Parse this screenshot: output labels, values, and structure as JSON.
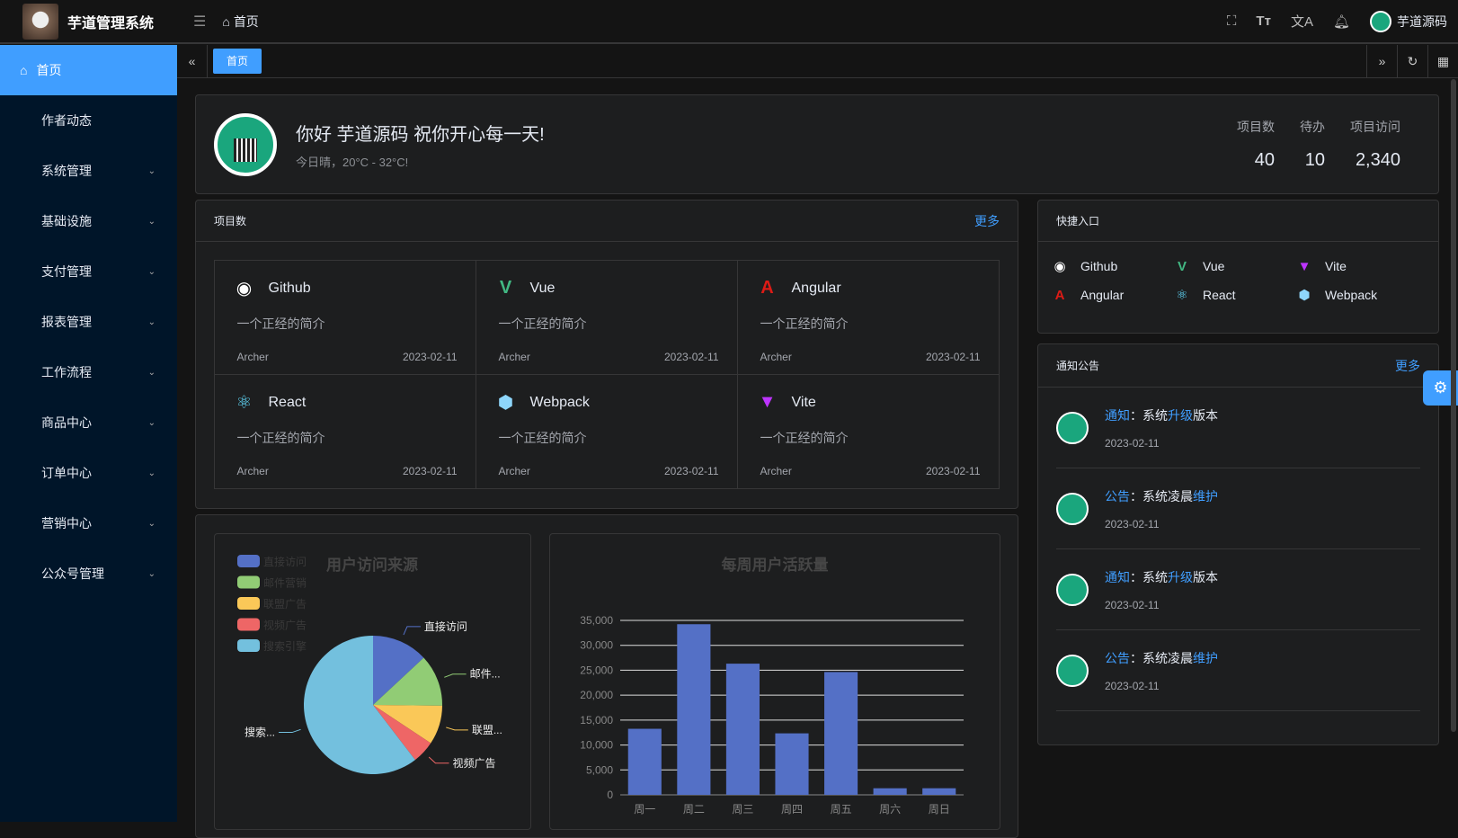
{
  "header": {
    "app_name": "芋道管理系统",
    "breadcrumb": "首页",
    "user": "芋道源码",
    "icons": [
      "fullscreen-icon",
      "font-size-icon",
      "translate-icon",
      "bell-icon"
    ]
  },
  "sidebar": {
    "items": [
      {
        "label": "首页",
        "active": true,
        "icon": "home-icon"
      },
      {
        "label": "作者动态"
      },
      {
        "label": "系统管理",
        "expandable": true
      },
      {
        "label": "基础设施",
        "expandable": true
      },
      {
        "label": "支付管理",
        "expandable": true
      },
      {
        "label": "报表管理",
        "expandable": true
      },
      {
        "label": "工作流程",
        "expandable": true
      },
      {
        "label": "商品中心",
        "expandable": true
      },
      {
        "label": "订单中心",
        "expandable": true
      },
      {
        "label": "营销中心",
        "expandable": true
      },
      {
        "label": "公众号管理",
        "expandable": true
      }
    ]
  },
  "tabs": {
    "items": [
      "首页"
    ]
  },
  "welcome": {
    "greeting": "你好 芋道源码 祝你开心每一天!",
    "weather": "今日晴，20°C - 32°C!",
    "stats": [
      {
        "label": "项目数",
        "value": "40"
      },
      {
        "label": "待办",
        "value": "10"
      },
      {
        "label": "项目访问",
        "value": "2,340"
      }
    ]
  },
  "projects": {
    "title": "项目数",
    "more": "更多",
    "items": [
      {
        "name": "Github",
        "icon": "github-icon",
        "color": "#ffffff",
        "desc": "一个正经的简介",
        "author": "Archer",
        "date": "2023-02-11"
      },
      {
        "name": "Vue",
        "icon": "vue-icon",
        "color": "#42b883",
        "desc": "一个正经的简介",
        "author": "Archer",
        "date": "2023-02-11"
      },
      {
        "name": "Angular",
        "icon": "angular-icon",
        "color": "#dd1b16",
        "desc": "一个正经的简介",
        "author": "Archer",
        "date": "2023-02-11"
      },
      {
        "name": "React",
        "icon": "react-icon",
        "color": "#61dafb",
        "desc": "一个正经的简介",
        "author": "Archer",
        "date": "2023-02-11"
      },
      {
        "name": "Webpack",
        "icon": "webpack-icon",
        "color": "#8ed6fb",
        "desc": "一个正经的简介",
        "author": "Archer",
        "date": "2023-02-11"
      },
      {
        "name": "Vite",
        "icon": "vite-icon",
        "color": "#bd34fe",
        "desc": "一个正经的简介",
        "author": "Archer",
        "date": "2023-02-11"
      }
    ]
  },
  "quick": {
    "title": "快捷入口",
    "items": [
      {
        "name": "Github",
        "icon": "github-icon",
        "color": "#ffffff"
      },
      {
        "name": "Vue",
        "icon": "vue-icon",
        "color": "#42b883"
      },
      {
        "name": "Vite",
        "icon": "vite-icon",
        "color": "#bd34fe"
      },
      {
        "name": "Angular",
        "icon": "angular-icon",
        "color": "#dd1b16"
      },
      {
        "name": "React",
        "icon": "react-icon",
        "color": "#61dafb"
      },
      {
        "name": "Webpack",
        "icon": "webpack-icon",
        "color": "#8ed6fb"
      }
    ]
  },
  "notice": {
    "title": "通知公告",
    "more": "更多",
    "items": [
      {
        "type": "通知",
        "sep": "：",
        "pre": "系统",
        "hl": "升级",
        "post": "版本",
        "date": "2023-02-11"
      },
      {
        "type": "公告",
        "sep": "：",
        "pre": "系统凌晨",
        "hl": "维护",
        "post": "",
        "date": "2023-02-11"
      },
      {
        "type": "通知",
        "sep": "：",
        "pre": "系统",
        "hl": "升级",
        "post": "版本",
        "date": "2023-02-11"
      },
      {
        "type": "公告",
        "sep": "：",
        "pre": "系统凌晨",
        "hl": "维护",
        "post": "",
        "date": "2023-02-11"
      }
    ]
  },
  "chart_data": [
    {
      "type": "pie",
      "title": "用户访问来源",
      "legend": "top-left",
      "slices": [
        {
          "name": "直接访问",
          "label": "直接访问",
          "value": 335,
          "color": "#5470c6"
        },
        {
          "name": "邮件营销",
          "label": "邮件...",
          "value": 310,
          "color": "#91cc75"
        },
        {
          "name": "联盟广告",
          "label": "联盟...",
          "value": 234,
          "color": "#fac858"
        },
        {
          "name": "视频广告",
          "label": "视频广告",
          "value": 135,
          "color": "#ee6666"
        },
        {
          "name": "搜索引擎",
          "label": "搜索...",
          "value": 1548,
          "color": "#73c0de"
        }
      ]
    },
    {
      "type": "bar",
      "title": "每周用户活跃量",
      "categories": [
        "周一",
        "周二",
        "周三",
        "周四",
        "周五",
        "周六",
        "周日"
      ],
      "values": [
        13253,
        34235,
        26321,
        12340,
        24643,
        1322,
        1324
      ],
      "ylim": [
        0,
        35000
      ],
      "yticks": [
        "0",
        "5,000",
        "10,000",
        "15,000",
        "20,000",
        "25,000",
        "30,000",
        "35,000"
      ],
      "grid": true,
      "color": "#5470c6"
    }
  ]
}
